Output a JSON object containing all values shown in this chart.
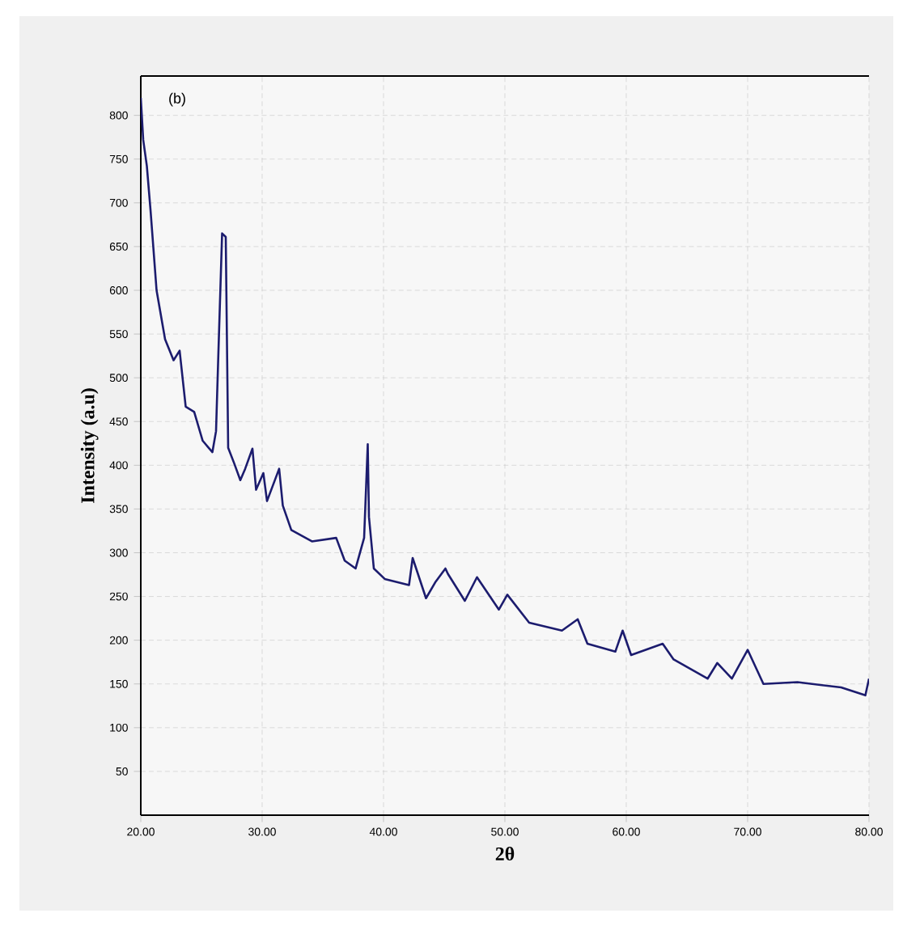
{
  "chart_data": {
    "type": "line",
    "xlabel": "2θ",
    "ylabel": "Intensity (a.u)",
    "annotations": [
      "(b)"
    ],
    "xlim": [
      20,
      80
    ],
    "ylim": [
      0,
      845
    ],
    "xticks": [
      {
        "value": 20,
        "label": "20.00"
      },
      {
        "value": 30,
        "label": "30.00"
      },
      {
        "value": 40,
        "label": "40.00"
      },
      {
        "value": 50,
        "label": "50.00"
      },
      {
        "value": 60,
        "label": "60.00"
      },
      {
        "value": 70,
        "label": "70.00"
      },
      {
        "value": 80,
        "label": "80.00"
      }
    ],
    "yticks": [
      50,
      100,
      150,
      200,
      250,
      300,
      350,
      400,
      450,
      500,
      550,
      600,
      650,
      700,
      750,
      800
    ],
    "grid": true,
    "marker": "none",
    "line_style": "solid",
    "series": [
      {
        "color": "#1c1c6e",
        "x": [
          20,
          20.2,
          20.5,
          20.8,
          21.3,
          22,
          22.7,
          23.2,
          23.7,
          24.4,
          25.1,
          25.9,
          26.2,
          26.4,
          26.7,
          27.0,
          27.2,
          27.7,
          28.2,
          28.6,
          29.2,
          29.5,
          30.1,
          30.4,
          31.4,
          31.7,
          32.4,
          34.1,
          36.1,
          36.8,
          37.7,
          38.4,
          38.7,
          38.8,
          39.2,
          40.1,
          42.1,
          42.4,
          43.5,
          44.3,
          45.1,
          45.3,
          46.7,
          47.7,
          49.5,
          50.2,
          52,
          54.7,
          56,
          56.8,
          59.1,
          59.7,
          60.4,
          63,
          63.9,
          66.7,
          67.5,
          68.7,
          70,
          71.3,
          74.1,
          77.7,
          79.7,
          80
        ],
        "values": [
          820,
          772,
          742,
          692,
          600,
          544,
          520,
          531,
          467,
          461,
          428,
          415,
          439,
          531,
          665,
          661,
          420,
          402,
          383,
          396,
          419,
          372,
          391,
          359,
          396,
          354,
          326,
          313,
          317,
          291,
          282,
          317,
          424,
          341,
          282,
          270,
          263,
          294,
          248,
          267,
          282,
          276,
          245,
          272,
          235,
          252,
          220,
          211,
          224,
          196,
          187,
          211,
          183,
          196,
          178,
          156,
          174,
          156,
          189,
          150,
          152,
          146,
          137,
          156
        ]
      }
    ]
  }
}
